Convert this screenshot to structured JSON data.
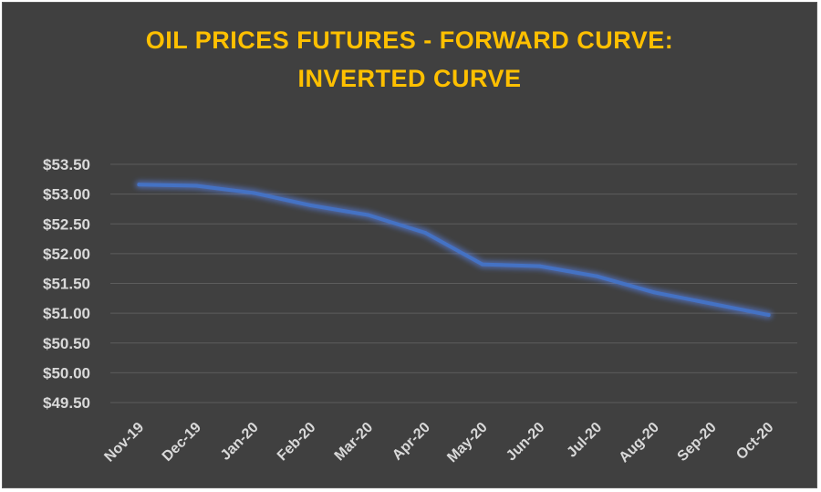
{
  "colors": {
    "background": "#404040",
    "title": "#ffc000",
    "series_line": "#4472c4",
    "series_glow": "#5b8bff",
    "gridline": "#5c5c5c",
    "tick_text": "#d9d9d9"
  },
  "chart_data": {
    "type": "line",
    "title_lines": [
      "OIL PRICES FUTURES - FORWARD CURVE:",
      "INVERTED CURVE"
    ],
    "xlabel": "",
    "ylabel": "",
    "categories": [
      "Nov-19",
      "Dec-19",
      "Jan-20",
      "Feb-20",
      "Mar-20",
      "Apr-20",
      "May-20",
      "Jun-20",
      "Jul-20",
      "Aug-20",
      "Sep-20",
      "Oct-20"
    ],
    "series": [
      {
        "values": [
          53.16,
          53.14,
          53.02,
          52.81,
          52.65,
          52.35,
          51.82,
          51.79,
          51.62,
          51.35,
          51.16,
          50.97
        ]
      }
    ],
    "ylim": [
      49.5,
      53.5
    ],
    "y_ticks": [
      49.5,
      50.0,
      50.5,
      51.0,
      51.5,
      52.0,
      52.5,
      53.0,
      53.5
    ],
    "y_tick_labels": [
      "$49.50",
      "$50.00",
      "$50.50",
      "$51.00",
      "$51.50",
      "$52.00",
      "$52.50",
      "$53.00",
      "$53.50"
    ],
    "grid": true,
    "legend": "none"
  }
}
